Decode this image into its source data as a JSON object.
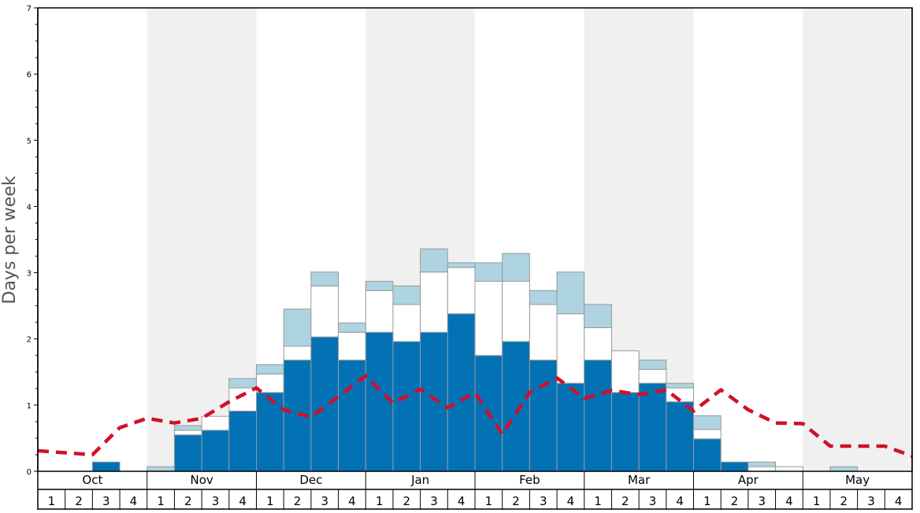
{
  "chart_data": {
    "type": "bar",
    "ylabel": "Days per week",
    "ylim": [
      0,
      7
    ],
    "yticks": [
      "0",
      "1",
      "2",
      "3",
      "4",
      "5",
      "6",
      "7"
    ],
    "months": [
      "Oct",
      "Nov",
      "Dec",
      "Jan",
      "Feb",
      "Mar",
      "Apr",
      "May"
    ],
    "weeks_per_month": [
      "1",
      "2",
      "3",
      "4"
    ],
    "shaded_months": [
      "Nov",
      "Jan",
      "Mar",
      "May"
    ],
    "colors": {
      "series_1": "#0272b5",
      "series_2": "#ffffff",
      "series_3": "#add4e0",
      "line": "#d0102a",
      "shade": "#f0f0f0",
      "bar_edge": "#999999"
    },
    "series": [
      {
        "values": [
          0,
          0,
          0.14,
          0,
          0,
          0.55,
          0.62,
          0.91,
          1.19,
          1.68,
          2.03,
          1.68,
          2.1,
          1.96,
          2.1,
          2.38,
          1.75,
          1.96,
          1.68,
          1.33,
          1.68,
          1.19,
          1.33,
          1.05,
          0.49,
          0.14,
          0,
          0,
          0,
          0,
          0,
          0
        ]
      },
      {
        "values": [
          0,
          0,
          0,
          0,
          0,
          0.07,
          0.21,
          0.35,
          0.28,
          0.21,
          0.77,
          0.42,
          0.63,
          0.56,
          0.91,
          0.7,
          1.12,
          0.91,
          0.84,
          1.05,
          0.49,
          0.63,
          0.21,
          0.21,
          0.14,
          0,
          0.07,
          0.07,
          0,
          0,
          0,
          0
        ]
      },
      {
        "values": [
          0,
          0,
          0,
          0,
          0.07,
          0.07,
          0,
          0.14,
          0.14,
          0.56,
          0.21,
          0.14,
          0.14,
          0.28,
          0.35,
          0.07,
          0.28,
          0.42,
          0.21,
          0.63,
          0.35,
          0,
          0.14,
          0.07,
          0.21,
          0,
          0.07,
          0,
          0,
          0.07,
          0,
          0
        ]
      },
      {
        "type": "line",
        "style": "dashed",
        "values": [
          0.31,
          0.28,
          0.25,
          0.66,
          0.8,
          0.73,
          0.8,
          1.05,
          1.26,
          0.93,
          0.82,
          1.13,
          1.44,
          1.03,
          1.24,
          0.96,
          1.19,
          0.56,
          1.19,
          1.41,
          1.1,
          1.22,
          1.16,
          1.23,
          0.91,
          1.23,
          0.93,
          0.73,
          0.72,
          0.38,
          0.38,
          0.38,
          0.23
        ]
      }
    ],
    "grid": false,
    "legend": "none"
  }
}
